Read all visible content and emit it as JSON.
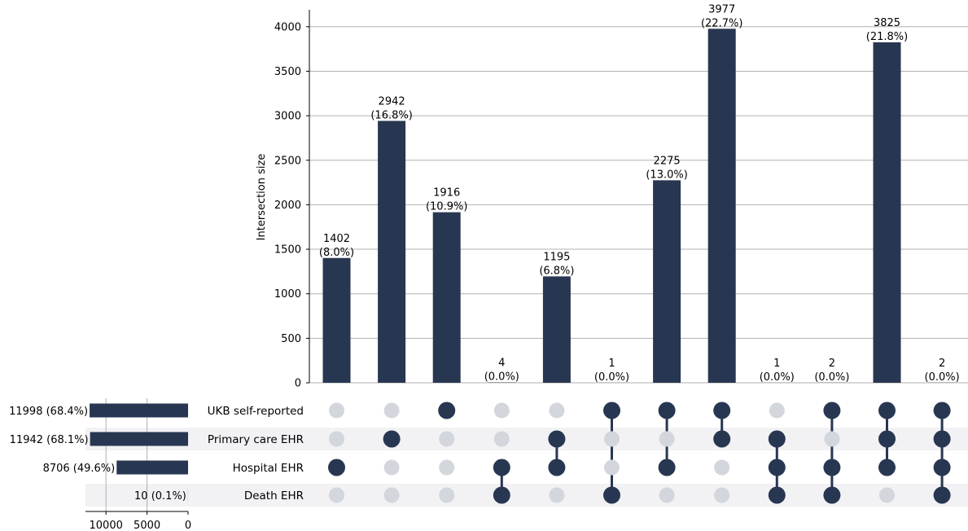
{
  "chart_data": {
    "type": "upset",
    "ylabel": "Intersection size",
    "ylim": [
      0,
      4200
    ],
    "yticks": [
      0,
      500,
      1000,
      1500,
      2000,
      2500,
      3000,
      3500,
      4000
    ],
    "sets": [
      {
        "name": "UKB self-reported",
        "size": 11998,
        "size_label": "11998 (68.4%)"
      },
      {
        "name": "Primary care EHR",
        "size": 11942,
        "size_label": "11942 (68.1%)"
      },
      {
        "name": "Hospital EHR",
        "size": 8706,
        "size_label": "8706 (49.6%)"
      },
      {
        "name": "Death EHR",
        "size": 10,
        "size_label": "10 (0.1%)"
      }
    ],
    "set_size_xticks": [
      10000,
      5000,
      0
    ],
    "set_size_xlim": [
      12500,
      0
    ],
    "intersections": [
      {
        "value": 1402,
        "pct": "(8.0%)",
        "members": [
          0,
          0,
          1,
          0
        ]
      },
      {
        "value": 2942,
        "pct": "(16.8%)",
        "members": [
          0,
          1,
          0,
          0
        ]
      },
      {
        "value": 1916,
        "pct": "(10.9%)",
        "members": [
          1,
          0,
          0,
          0
        ]
      },
      {
        "value": 4,
        "pct": "(0.0%)",
        "members": [
          0,
          0,
          1,
          1
        ]
      },
      {
        "value": 1195,
        "pct": "(6.8%)",
        "members": [
          0,
          1,
          1,
          0
        ]
      },
      {
        "value": 1,
        "pct": "(0.0%)",
        "members": [
          1,
          0,
          0,
          1
        ]
      },
      {
        "value": 2275,
        "pct": "(13.0%)",
        "members": [
          1,
          0,
          1,
          0
        ]
      },
      {
        "value": 3977,
        "pct": "(22.7%)",
        "members": [
          1,
          1,
          0,
          0
        ]
      },
      {
        "value": 1,
        "pct": "(0.0%)",
        "members": [
          0,
          1,
          1,
          1
        ]
      },
      {
        "value": 2,
        "pct": "(0.0%)",
        "members": [
          1,
          0,
          1,
          1
        ]
      },
      {
        "value": 3825,
        "pct": "(21.8%)",
        "members": [
          1,
          1,
          1,
          0
        ]
      },
      {
        "value": 2,
        "pct": "(0.0%)",
        "members": [
          1,
          1,
          1,
          1
        ]
      }
    ],
    "grid": true,
    "colors": {
      "bar": "#283751",
      "inactive": "#d3d6dc",
      "stripe": "#f2f2f4",
      "grid": "#b0b0b0"
    }
  }
}
